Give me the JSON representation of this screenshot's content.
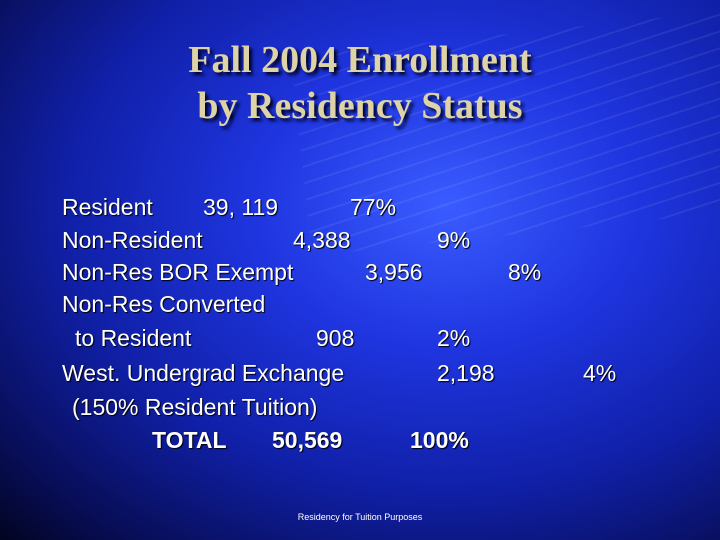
{
  "title": [
    "Fall 2004 Enrollment",
    "by Residency Status"
  ],
  "rows": [
    {
      "label": [
        "Resident"
      ],
      "count": "39, 119",
      "percent": "77%"
    },
    {
      "label": [
        "Non-Resident"
      ],
      "count": "4,388",
      "percent": "9%"
    },
    {
      "label": [
        "Non-Res BOR Exempt"
      ],
      "count": "3,956",
      "percent": "8%"
    },
    {
      "label": [
        "Non-Res Converted",
        "to Resident"
      ],
      "count": "908",
      "percent": "2%"
    },
    {
      "label": [
        "West. Undergrad Exchange",
        "(150% Resident Tuition)"
      ],
      "count": "2,198",
      "percent": "4%"
    }
  ],
  "total": {
    "label": "TOTAL",
    "count": "50,569",
    "percent": "100%"
  },
  "footer": "Residency for Tuition Purposes"
}
